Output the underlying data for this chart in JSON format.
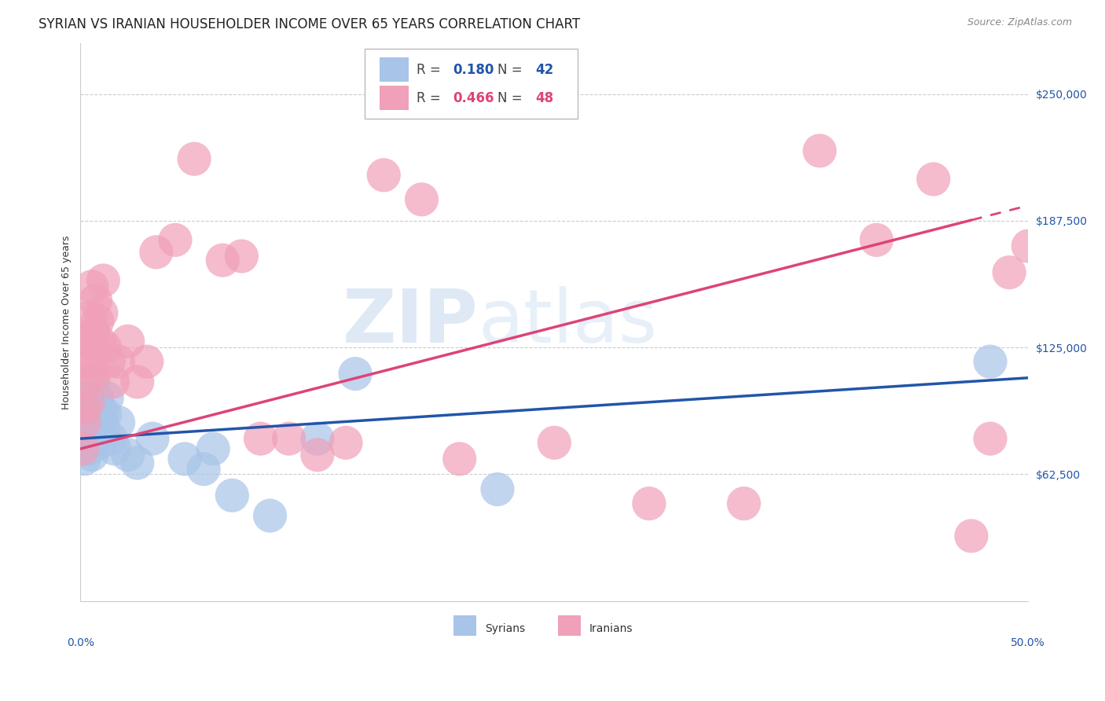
{
  "title": "SYRIAN VS IRANIAN HOUSEHOLDER INCOME OVER 65 YEARS CORRELATION CHART",
  "source": "Source: ZipAtlas.com",
  "ylabel": "Householder Income Over 65 years",
  "ytick_labels": [
    "$62,500",
    "$125,000",
    "$187,500",
    "$250,000"
  ],
  "ytick_values": [
    62500,
    125000,
    187500,
    250000
  ],
  "xlim": [
    0.0,
    0.5
  ],
  "ylim": [
    0,
    275000
  ],
  "watermark_zip": "ZIP",
  "watermark_atlas": "atlas",
  "legend_syrian_R": "0.180",
  "legend_syrian_N": "42",
  "legend_iranian_R": "0.466",
  "legend_iranian_N": "48",
  "syrian_color": "#a8c4e8",
  "iranian_color": "#f0a0b8",
  "syrian_line_color": "#2255aa",
  "iranian_line_color": "#dd4477",
  "syrian_marker_size": 11,
  "iranian_marker_size": 11,
  "syrian_x": [
    0.001,
    0.002,
    0.002,
    0.003,
    0.003,
    0.003,
    0.004,
    0.004,
    0.004,
    0.005,
    0.005,
    0.005,
    0.006,
    0.006,
    0.007,
    0.007,
    0.007,
    0.008,
    0.008,
    0.009,
    0.009,
    0.01,
    0.01,
    0.011,
    0.012,
    0.013,
    0.014,
    0.016,
    0.018,
    0.02,
    0.025,
    0.03,
    0.038,
    0.055,
    0.065,
    0.07,
    0.08,
    0.1,
    0.125,
    0.145,
    0.22,
    0.48
  ],
  "syrian_y": [
    75000,
    80000,
    70000,
    85000,
    78000,
    92000,
    90000,
    88000,
    75000,
    100000,
    95000,
    82000,
    88000,
    72000,
    95000,
    108000,
    80000,
    92000,
    85000,
    100000,
    88000,
    95000,
    78000,
    90000,
    85000,
    92000,
    100000,
    80000,
    75000,
    88000,
    72000,
    68000,
    80000,
    70000,
    65000,
    75000,
    52000,
    42000,
    80000,
    112000,
    55000,
    118000
  ],
  "iranian_x": [
    0.001,
    0.002,
    0.002,
    0.003,
    0.003,
    0.004,
    0.004,
    0.005,
    0.005,
    0.006,
    0.006,
    0.007,
    0.007,
    0.008,
    0.008,
    0.009,
    0.01,
    0.011,
    0.012,
    0.013,
    0.015,
    0.017,
    0.02,
    0.025,
    0.03,
    0.035,
    0.04,
    0.05,
    0.06,
    0.075,
    0.085,
    0.095,
    0.11,
    0.125,
    0.14,
    0.16,
    0.18,
    0.2,
    0.25,
    0.3,
    0.35,
    0.39,
    0.42,
    0.45,
    0.47,
    0.48,
    0.49,
    0.5
  ],
  "iranian_y": [
    75000,
    95000,
    88000,
    108000,
    128000,
    118000,
    98000,
    140000,
    130000,
    118000,
    155000,
    132000,
    112000,
    148000,
    125000,
    138000,
    128000,
    142000,
    158000,
    125000,
    118000,
    108000,
    118000,
    128000,
    108000,
    118000,
    172000,
    178000,
    218000,
    168000,
    170000,
    80000,
    80000,
    72000,
    78000,
    210000,
    198000,
    70000,
    78000,
    48000,
    48000,
    222000,
    178000,
    208000,
    32000,
    80000,
    162000,
    175000
  ],
  "background_color": "#ffffff",
  "grid_color": "#cccccc",
  "title_fontsize": 12,
  "source_fontsize": 9,
  "axis_label_fontsize": 9,
  "tick_fontsize": 10
}
